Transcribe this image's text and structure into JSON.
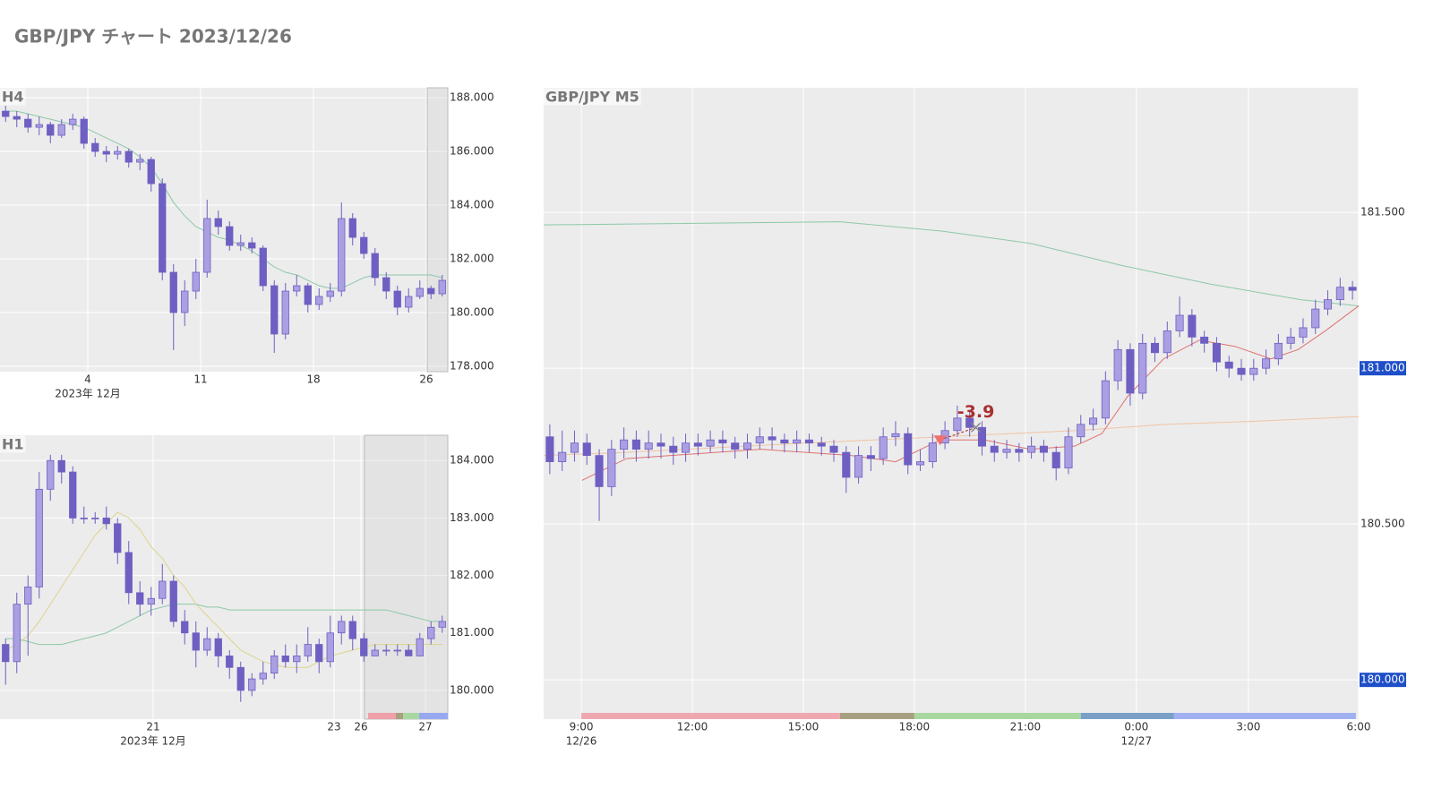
{
  "title": "GBP/JPY チャート 2023/12/26",
  "chart_data": [
    {
      "type": "candlestick",
      "title": "H4",
      "up_color": "#a99fe2",
      "down_color": "#6e5fc2",
      "open": [
        187.5,
        187.3,
        187.2,
        186.9,
        187.0,
        186.6,
        187.0,
        187.2,
        186.3,
        186.0,
        185.9,
        186.0,
        185.6,
        185.7,
        184.8,
        181.5,
        180.0,
        180.8,
        181.5,
        183.5,
        183.2,
        182.5,
        182.6,
        182.4,
        181.0,
        179.2,
        180.8,
        181.0,
        180.3,
        180.6,
        180.8,
        183.5,
        182.8,
        182.2,
        181.3,
        180.8,
        180.2,
        180.6,
        180.9,
        180.7
      ],
      "high": [
        187.7,
        187.5,
        187.4,
        187.3,
        187.1,
        187.2,
        187.4,
        187.3,
        186.5,
        186.2,
        186.2,
        186.1,
        185.9,
        185.8,
        185.0,
        181.8,
        181.2,
        182.0,
        184.2,
        183.8,
        183.4,
        182.9,
        182.8,
        182.5,
        181.2,
        181.1,
        181.4,
        181.1,
        180.9,
        181.1,
        184.1,
        183.7,
        183.0,
        182.4,
        181.5,
        181.0,
        180.9,
        181.2,
        181.0,
        181.4
      ],
      "low": [
        187.1,
        186.9,
        186.7,
        186.6,
        186.3,
        186.5,
        186.8,
        186.1,
        185.8,
        185.6,
        185.7,
        185.4,
        185.3,
        184.5,
        181.2,
        178.6,
        179.5,
        180.5,
        181.3,
        182.9,
        182.3,
        182.3,
        182.2,
        180.8,
        178.5,
        179.0,
        180.6,
        180.0,
        180.1,
        180.4,
        180.6,
        182.5,
        182.0,
        181.0,
        180.5,
        179.9,
        180.0,
        180.5,
        180.5,
        180.6
      ],
      "close": [
        187.3,
        187.2,
        186.9,
        187.0,
        186.6,
        187.0,
        187.2,
        186.3,
        186.0,
        185.9,
        186.0,
        185.6,
        185.7,
        184.8,
        181.5,
        180.0,
        180.8,
        181.5,
        183.5,
        183.2,
        182.5,
        182.6,
        182.4,
        181.0,
        179.2,
        180.8,
        181.0,
        180.3,
        180.6,
        180.8,
        183.5,
        182.8,
        182.2,
        181.3,
        180.8,
        180.2,
        180.6,
        180.9,
        180.7,
        181.2
      ],
      "ma": [
        {
          "color": "#8cc8a8",
          "values": [
            187.5,
            187.5,
            187.4,
            187.3,
            187.2,
            187.1,
            187.0,
            186.9,
            186.7,
            186.5,
            186.3,
            186.1,
            185.8,
            185.4,
            184.8,
            184.1,
            183.6,
            183.2,
            183.0,
            182.8,
            182.7,
            182.5,
            182.3,
            182.0,
            181.7,
            181.5,
            181.4,
            181.2,
            181.0,
            180.9,
            180.9,
            181.1,
            181.3,
            181.4,
            181.4,
            181.4,
            181.4,
            181.4,
            181.4,
            181.3
          ]
        }
      ],
      "xlim": [
        -0.5,
        39.5
      ],
      "ylim": [
        177.8,
        188.37
      ],
      "xticks": [
        {
          "value": 7.34,
          "label": "4"
        },
        {
          "value": 17.42,
          "label": "11"
        },
        {
          "value": 27.5,
          "label": "18"
        },
        {
          "value": 37.58,
          "label": "26"
        }
      ],
      "xticks2": [
        {
          "value": 7.34,
          "label": "2023年 12月"
        }
      ],
      "yticks": [
        {
          "value": 178,
          "label": "178.000"
        },
        {
          "value": 180,
          "label": "180.000"
        },
        {
          "value": 182,
          "label": "182.000"
        },
        {
          "value": 184,
          "label": "184.000"
        },
        {
          "value": 186,
          "label": "186.000"
        },
        {
          "value": 188,
          "label": "188.000"
        }
      ],
      "grid": true
    },
    {
      "type": "candlestick",
      "title": "H1",
      "up_color": "#a99fe2",
      "down_color": "#6e5fc2",
      "open": [
        180.8,
        180.5,
        181.5,
        181.8,
        183.5,
        184.0,
        183.8,
        183.0,
        183.0,
        183.0,
        182.9,
        182.4,
        181.7,
        181.5,
        181.6,
        181.9,
        181.2,
        181.0,
        180.7,
        180.9,
        180.6,
        180.4,
        180.0,
        180.2,
        180.3,
        180.6,
        180.5,
        180.6,
        180.8,
        180.5,
        181.0,
        181.2,
        180.9,
        180.6,
        180.7,
        180.7,
        180.7,
        180.6,
        180.9,
        181.1
      ],
      "high": [
        180.9,
        181.7,
        182.0,
        183.8,
        184.1,
        184.1,
        183.9,
        183.2,
        183.1,
        183.2,
        183.0,
        182.6,
        181.9,
        181.8,
        182.2,
        182.0,
        181.4,
        181.2,
        181.1,
        181.0,
        180.7,
        180.5,
        180.3,
        180.5,
        180.7,
        180.8,
        180.8,
        181.1,
        180.9,
        181.3,
        181.3,
        181.3,
        181.0,
        180.8,
        180.8,
        180.8,
        180.8,
        181.0,
        181.2,
        181.3
      ],
      "low": [
        180.1,
        180.3,
        180.6,
        181.6,
        183.3,
        183.6,
        182.9,
        182.9,
        182.9,
        182.8,
        182.2,
        181.5,
        181.3,
        181.3,
        181.5,
        181.1,
        180.8,
        180.4,
        180.6,
        180.4,
        180.2,
        179.8,
        179.9,
        180.1,
        180.2,
        180.4,
        180.3,
        180.5,
        180.3,
        180.4,
        180.8,
        180.7,
        180.5,
        180.6,
        180.6,
        180.6,
        180.6,
        180.6,
        180.8,
        181.0
      ],
      "close": [
        180.5,
        181.5,
        181.8,
        183.5,
        184.0,
        183.8,
        183.0,
        183.0,
        183.0,
        182.9,
        182.4,
        181.7,
        181.5,
        181.6,
        181.9,
        181.2,
        181.0,
        180.7,
        180.9,
        180.6,
        180.4,
        180.0,
        180.2,
        180.3,
        180.6,
        180.5,
        180.6,
        180.8,
        180.5,
        181.0,
        181.2,
        180.9,
        180.6,
        180.7,
        180.7,
        180.7,
        180.6,
        180.9,
        181.1,
        181.2
      ],
      "ma": [
        {
          "color": "#8cc8a8",
          "values": [
            180.9,
            180.9,
            180.85,
            180.8,
            180.8,
            180.8,
            180.85,
            180.9,
            180.95,
            181.0,
            181.1,
            181.2,
            181.3,
            181.4,
            181.45,
            181.5,
            181.5,
            181.5,
            181.45,
            181.45,
            181.4,
            181.4,
            181.4,
            181.4,
            181.4,
            181.4,
            181.4,
            181.4,
            181.4,
            181.4,
            181.4,
            181.4,
            181.4,
            181.4,
            181.4,
            181.35,
            181.3,
            181.25,
            181.2,
            181.2
          ]
        },
        {
          "color": "#dcd48c",
          "values": [
            180.7,
            180.8,
            180.95,
            181.2,
            181.5,
            181.8,
            182.1,
            182.4,
            182.7,
            182.9,
            183.1,
            183.0,
            182.8,
            182.5,
            182.3,
            182.0,
            181.8,
            181.5,
            181.3,
            181.1,
            180.9,
            180.7,
            180.6,
            180.5,
            180.45,
            180.4,
            180.4,
            180.4,
            180.5,
            180.6,
            180.65,
            180.7,
            180.75,
            180.8,
            180.8,
            180.8,
            180.8,
            180.8,
            180.8,
            180.8
          ]
        }
      ],
      "sessions": [
        {
          "start": 32.38,
          "end": 34.86,
          "color": "#f0a0a8"
        },
        {
          "start": 34.86,
          "end": 35.5,
          "color": "#a8a080"
        },
        {
          "start": 35.5,
          "end": 36.94,
          "color": "#a8d8a0"
        },
        {
          "start": 36.94,
          "end": 39.5,
          "color": "#98a8f0"
        }
      ],
      "xlim": [
        -0.5,
        39.5
      ],
      "ylim": [
        179.5,
        184.44
      ],
      "xticks": [
        {
          "value": 13.18,
          "label": "21"
        },
        {
          "value": 29.34,
          "label": "23"
        },
        {
          "value": 31.74,
          "label": "26"
        },
        {
          "value": 37.5,
          "label": "27"
        }
      ],
      "xticks2": [
        {
          "value": 13.18,
          "label": "2023年 12月"
        }
      ],
      "yticks": [
        {
          "value": 180,
          "label": "180.000"
        },
        {
          "value": 181,
          "label": "181.000"
        },
        {
          "value": 182,
          "label": "182.000"
        },
        {
          "value": 183,
          "label": "183.000"
        },
        {
          "value": 184,
          "label": "184.000"
        }
      ],
      "grid": true
    },
    {
      "type": "candlestick",
      "title": "GBP/JPY M5",
      "up_color": "#a99fe2",
      "down_color": "#6e5fc2",
      "open": [
        180.78,
        180.7,
        180.73,
        180.76,
        180.72,
        180.62,
        180.74,
        180.77,
        180.74,
        180.76,
        180.75,
        180.73,
        180.76,
        180.75,
        180.77,
        180.76,
        180.74,
        180.76,
        180.78,
        180.77,
        180.76,
        180.77,
        180.76,
        180.75,
        180.73,
        180.65,
        180.72,
        180.71,
        180.78,
        180.79,
        180.69,
        180.7,
        180.76,
        180.8,
        180.84,
        180.81,
        180.75,
        180.73,
        180.74,
        180.73,
        180.75,
        180.73,
        180.68,
        180.78,
        180.82,
        180.84,
        180.96,
        181.06,
        180.92,
        181.08,
        181.05,
        181.12,
        181.17,
        181.1,
        181.08,
        181.02,
        181.0,
        180.98,
        181.0,
        181.03,
        181.08,
        181.1,
        181.13,
        181.19,
        181.22,
        181.26
      ],
      "high": [
        180.82,
        180.8,
        180.8,
        180.79,
        180.74,
        180.77,
        180.81,
        180.8,
        180.8,
        180.79,
        180.78,
        180.79,
        180.79,
        180.8,
        180.8,
        180.78,
        180.79,
        180.81,
        180.81,
        180.79,
        180.8,
        180.79,
        180.78,
        180.77,
        180.75,
        180.75,
        180.75,
        180.81,
        180.83,
        180.81,
        180.74,
        180.79,
        180.83,
        180.88,
        180.86,
        180.83,
        180.77,
        180.77,
        180.76,
        180.78,
        180.77,
        180.75,
        180.81,
        180.85,
        180.87,
        180.99,
        181.09,
        181.08,
        181.11,
        181.1,
        181.15,
        181.23,
        181.19,
        181.12,
        181.1,
        181.04,
        181.03,
        181.03,
        181.06,
        181.11,
        181.13,
        181.16,
        181.22,
        181.25,
        181.29,
        181.28
      ],
      "low": [
        180.66,
        180.67,
        180.7,
        180.69,
        180.51,
        180.59,
        180.71,
        180.7,
        180.71,
        180.71,
        180.69,
        180.7,
        180.72,
        180.73,
        180.73,
        180.71,
        180.71,
        180.74,
        180.74,
        180.73,
        180.73,
        180.73,
        180.72,
        180.7,
        180.6,
        180.63,
        180.67,
        180.69,
        180.75,
        180.66,
        180.67,
        180.68,
        180.74,
        180.78,
        180.78,
        180.72,
        180.7,
        180.71,
        180.7,
        180.71,
        180.7,
        180.64,
        180.66,
        180.76,
        180.8,
        180.82,
        180.93,
        180.88,
        180.9,
        181.02,
        181.03,
        181.1,
        181.07,
        181.05,
        180.99,
        180.97,
        180.96,
        180.96,
        180.98,
        181.01,
        181.06,
        181.08,
        181.11,
        181.17,
        181.2,
        181.22
      ],
      "close": [
        180.7,
        180.73,
        180.76,
        180.72,
        180.62,
        180.74,
        180.77,
        180.74,
        180.76,
        180.75,
        180.73,
        180.76,
        180.75,
        180.77,
        180.76,
        180.74,
        180.76,
        180.78,
        180.77,
        180.76,
        180.77,
        180.76,
        180.75,
        180.73,
        180.65,
        180.72,
        180.71,
        180.78,
        180.79,
        180.69,
        180.7,
        180.76,
        180.8,
        180.84,
        180.81,
        180.75,
        180.73,
        180.74,
        180.73,
        180.75,
        180.73,
        180.68,
        180.78,
        180.82,
        180.84,
        180.96,
        181.06,
        180.92,
        181.08,
        181.05,
        181.12,
        181.17,
        181.1,
        181.08,
        181.02,
        181.0,
        180.98,
        181.0,
        181.03,
        181.08,
        181.1,
        181.13,
        181.19,
        181.22,
        181.26,
        181.25
      ],
      "ma": [
        {
          "color": "#8cc8a8",
          "x": [
            -0.5,
            23.5,
            31.8,
            39,
            46.3,
            53.5,
            60.8,
            65.5
          ],
          "values": [
            181.46,
            181.47,
            181.44,
            181.4,
            181.33,
            181.27,
            181.22,
            181.2
          ]
        },
        {
          "color": "#f0c4a4",
          "x": [
            -0.5,
            6.2,
            20.7,
            31.8,
            42.7,
            49.9,
            57.1,
            65.5
          ],
          "values": [
            180.72,
            180.73,
            180.76,
            180.78,
            180.8,
            180.82,
            180.83,
            180.845
          ]
        },
        {
          "color": "#e07070",
          "x": [
            2.6,
            6.2,
            17.1,
            24.4,
            28,
            31.6,
            35.2,
            38.9,
            42.5,
            44.7,
            46.8,
            49.7,
            52.6,
            55.5,
            58.4,
            60.6,
            62.8,
            65.5
          ],
          "values": [
            180.64,
            180.71,
            180.74,
            180.72,
            180.7,
            180.77,
            180.77,
            180.74,
            180.75,
            180.79,
            180.91,
            181.03,
            181.09,
            181.07,
            181.03,
            181.06,
            181.12,
            181.2
          ]
        }
      ],
      "sessions": [
        {
          "start": 2.55,
          "end": 23.5,
          "color": "#f0a8b0"
        },
        {
          "start": 23.5,
          "end": 29.52,
          "color": "#a8a080"
        },
        {
          "start": 29.52,
          "end": 43.0,
          "color": "#a8d8a0"
        },
        {
          "start": 43.0,
          "end": 50.55,
          "color": "#7aa0c8"
        },
        {
          "start": 50.55,
          "end": 65.27,
          "color": "#a0b0f0"
        }
      ],
      "trade": {
        "entry": {
          "x": 31.6,
          "price": 180.77
        },
        "exit": {
          "x": 34.5,
          "price": 180.81
        },
        "label": "-3.9",
        "color": "#a83030"
      },
      "xlim": [
        -0.5,
        65.5
      ],
      "ylim": [
        179.874,
        181.9
      ],
      "xticks": [
        {
          "value": 2.55,
          "label": "9:00"
        },
        {
          "value": 11.54,
          "label": "12:00"
        },
        {
          "value": 20.53,
          "label": "15:00"
        },
        {
          "value": 29.52,
          "label": "18:00"
        },
        {
          "value": 38.51,
          "label": "21:00"
        },
        {
          "value": 47.5,
          "label": "0:00"
        },
        {
          "value": 56.57,
          "label": "3:00"
        },
        {
          "value": 65.5,
          "label": "6:00"
        }
      ],
      "xticks2": [
        {
          "value": 2.55,
          "label": "12/26"
        },
        {
          "value": 47.5,
          "label": "12/27"
        }
      ],
      "yticks": [
        {
          "value": 180,
          "label": "180.000",
          "highlight": true
        },
        {
          "value": 180.5,
          "label": "180.500"
        },
        {
          "value": 181,
          "label": "181.000",
          "highlight": true
        },
        {
          "value": 181.5,
          "label": "181.500"
        }
      ],
      "grid": true
    }
  ]
}
